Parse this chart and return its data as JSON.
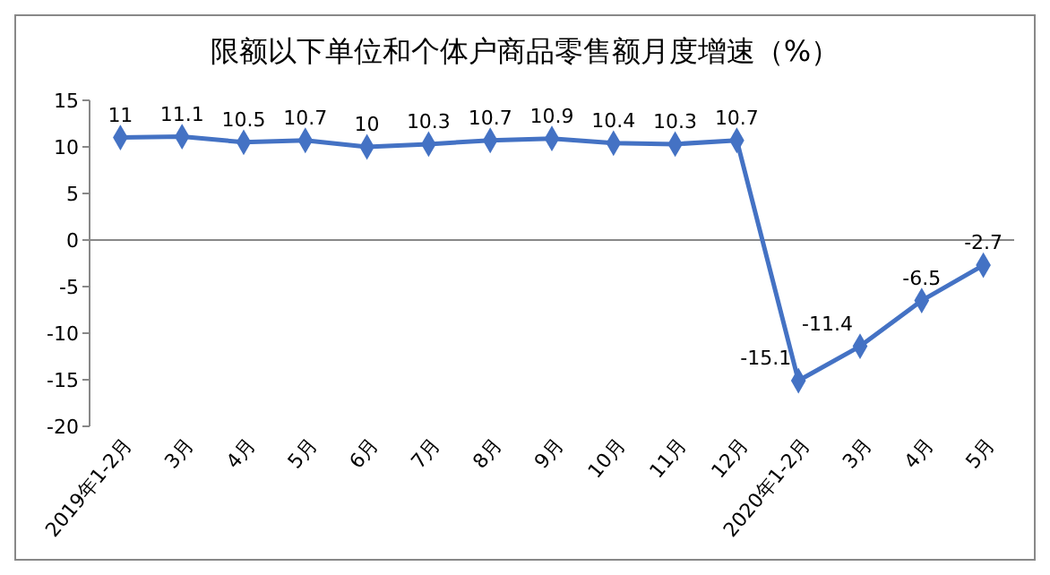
{
  "chart_data": {
    "type": "line",
    "title": "限额以下单位和个体户商品零售额月度增速（%）",
    "categories": [
      "2019年1-2月",
      "3月",
      "4月",
      "5月",
      "6月",
      "7月",
      "8月",
      "9月",
      "10月",
      "11月",
      "12月",
      "2020年1-2月",
      "3月",
      "4月",
      "5月"
    ],
    "series": [
      {
        "color": "#4472c4",
        "values": [
          11,
          11.1,
          10.5,
          10.7,
          10,
          10.3,
          10.7,
          10.9,
          10.4,
          10.3,
          10.7,
          -15.1,
          -11.4,
          -6.5,
          -2.7
        ]
      }
    ],
    "ylim": [
      -20,
      15
    ],
    "yticks": [
      -20,
      -15,
      -10,
      -5,
      0,
      5,
      10,
      15
    ],
    "marker": "diamond",
    "data_labels": true
  }
}
